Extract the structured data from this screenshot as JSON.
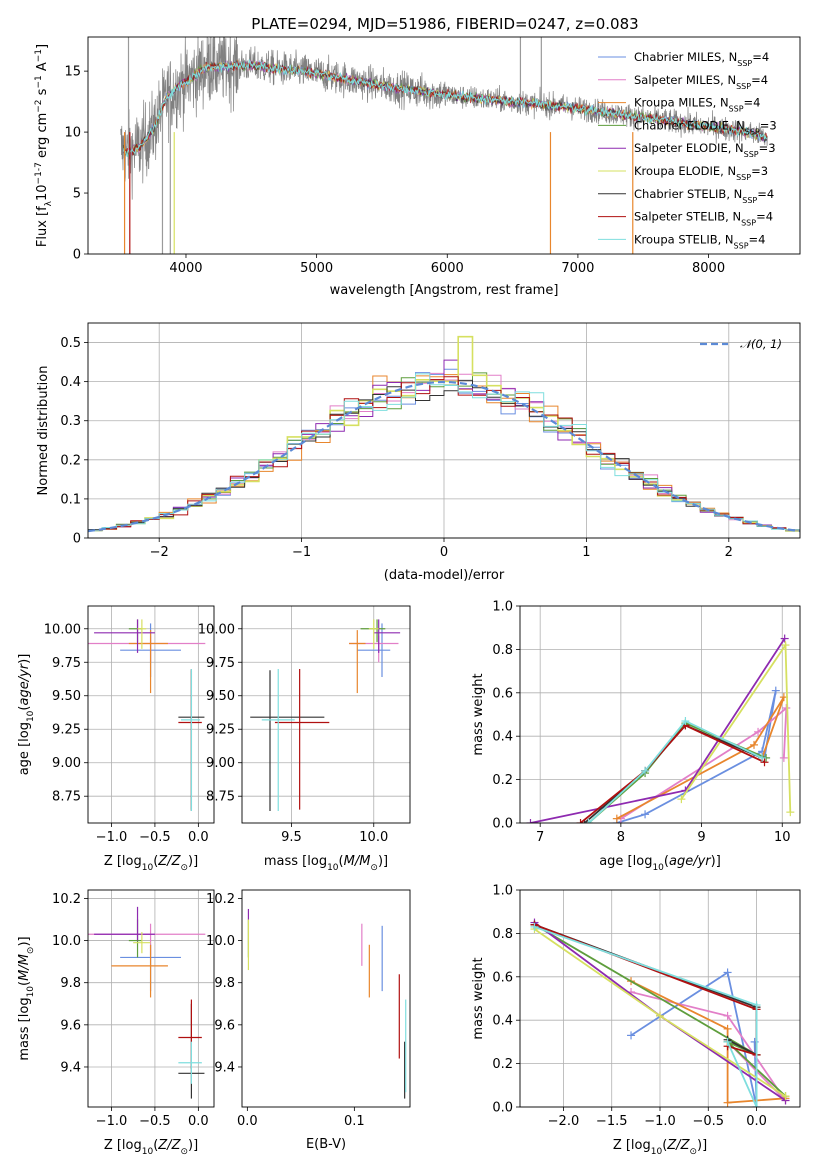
{
  "figure": {
    "title": "PLATE=0294, MJD=51986, FIBERID=0247, z=0.083"
  },
  "legend_labels": [
    {
      "name": "Chabrier MILES, N",
      "sub": "SSP",
      "tail": "=4",
      "color": "#6a8fe0"
    },
    {
      "name": "Salpeter MILES, N",
      "sub": "SSP",
      "tail": "=4",
      "color": "#e27fc8"
    },
    {
      "name": "Kroupa MILES, N",
      "sub": "SSP",
      "tail": "=4",
      "color": "#e8862d"
    },
    {
      "name": "Chabrier ELODIE, N",
      "sub": "SSP",
      "tail": "=3",
      "color": "#5e9d3c"
    },
    {
      "name": "Salpeter ELODIE, N",
      "sub": "SSP",
      "tail": "=3",
      "color": "#8e2ab0"
    },
    {
      "name": "Kroupa ELODIE, N",
      "sub": "SSP",
      "tail": "=3",
      "color": "#d6e060"
    },
    {
      "name": "Chabrier STELIB, N",
      "sub": "SSP",
      "tail": "=4",
      "color": "#333333"
    },
    {
      "name": "Salpeter STELIB, N",
      "sub": "SSP",
      "tail": "=4",
      "color": "#b01010"
    },
    {
      "name": "Kroupa STELIB, N",
      "sub": "SSP",
      "tail": "=4",
      "color": "#7fdede"
    }
  ],
  "chart_data": [
    {
      "id": "spectrum",
      "type": "line",
      "title": "PLATE=0294, MJD=51986, FIBERID=0247, z=0.083",
      "xlabel": "wavelength [Angstrom, rest frame]",
      "ylabel": "Flux [fλ10⁻¹⁷ erg cm⁻² s⁻¹ A⁻¹]",
      "xlim": [
        3250,
        8700
      ],
      "ylim": [
        0,
        17.8
      ],
      "xticks": [
        4000,
        5000,
        6000,
        7000,
        8000
      ],
      "yticks": [
        0,
        5,
        10,
        15
      ],
      "data_color": "#808080",
      "data_anchors": {
        "wavelength": [
          3500,
          3550,
          3650,
          3750,
          3850,
          3950,
          4050,
          4150,
          4300,
          4500,
          4700,
          4900,
          5100,
          5300,
          5500,
          5700,
          5900,
          6100,
          6300,
          6500,
          6700,
          6900,
          7100,
          7300,
          7500,
          7700,
          7900,
          8100,
          8300,
          8450
        ],
        "flux": [
          8.7,
          8.3,
          8.8,
          10.2,
          12.8,
          13.8,
          14.5,
          15.3,
          15.4,
          15.5,
          15.2,
          15.0,
          14.6,
          14.2,
          13.8,
          13.5,
          13.2,
          12.9,
          12.7,
          12.5,
          12.3,
          12.1,
          11.8,
          11.5,
          11.2,
          10.9,
          10.6,
          10.3,
          10.0,
          9.5
        ]
      },
      "legend_position": "upper right",
      "grid": false
    },
    {
      "id": "residuals",
      "type": "bar",
      "xlabel": "(data-model)/error",
      "ylabel": "Normed distribution",
      "xlim": [
        -2.5,
        2.5
      ],
      "ylim": [
        0,
        0.55
      ],
      "xticks": [
        -2,
        -1,
        0,
        1,
        2
      ],
      "yticks": [
        0.0,
        0.1,
        0.2,
        0.3,
        0.4,
        0.5
      ],
      "bin_width": 0.1,
      "curve_label": "N(0,1)",
      "curve_color": "#5b8ad6",
      "legend_position": "upper right",
      "grid": true
    },
    {
      "id": "age_vs_Z",
      "type": "scatter",
      "xlabel": "Z [log10(Z/Z⊙)]",
      "ylabel": "age  [log10(age/yr)]",
      "xlim": [
        -1.27,
        0.18
      ],
      "ylim": [
        8.55,
        10.17
      ],
      "xticks": [
        -1.0,
        -0.5,
        0.0
      ],
      "yticks": [
        8.75,
        9.0,
        9.25,
        9.5,
        9.75,
        10.0
      ],
      "points": [
        {
          "x": -0.55,
          "y": 9.84,
          "xerr": [
            0.35,
            0.35
          ],
          "yerr": [
            0.2,
            0.2
          ],
          "color": "#6a8fe0"
        },
        {
          "x": -0.55,
          "y": 9.89,
          "xerr": [
            0.73,
            0.63
          ],
          "yerr": [
            0.14,
            0.06
          ],
          "color": "#e27fc8"
        },
        {
          "x": -0.55,
          "y": 9.89,
          "xerr": [
            0.25,
            0.2
          ],
          "yerr": [
            0.37,
            0.1
          ],
          "color": "#e8862d"
        },
        {
          "x": -0.7,
          "y": 10.0,
          "xerr": [
            0.1,
            0.05
          ],
          "yerr": [
            0.1,
            0.07
          ],
          "color": "#5e9d3c"
        },
        {
          "x": -0.7,
          "y": 9.97,
          "xerr": [
            0.5,
            0.2
          ],
          "yerr": [
            0.15,
            0.1
          ],
          "color": "#8e2ab0"
        },
        {
          "x": -0.65,
          "y": 10.0,
          "xerr": [
            0.05,
            0.05
          ],
          "yerr": [
            0.15,
            0.07
          ],
          "color": "#d6e060"
        },
        {
          "x": -0.08,
          "y": 9.34,
          "xerr": [
            0.15,
            0.15
          ],
          "yerr": [
            0.7,
            0.35
          ],
          "color": "#333333"
        },
        {
          "x": -0.08,
          "y": 9.3,
          "xerr": [
            0.15,
            0.12
          ],
          "yerr": [
            0.65,
            0.4
          ],
          "color": "#b01010"
        },
        {
          "x": -0.08,
          "y": 9.32,
          "xerr": [
            0.12,
            0.1
          ],
          "yerr": [
            0.68,
            0.38
          ],
          "color": "#7fdede"
        }
      ],
      "grid": true
    },
    {
      "id": "age_vs_mass",
      "type": "scatter",
      "xlabel": "mass [log10(M/M⊙)]",
      "ylabel": "",
      "xlim": [
        9.2,
        10.22
      ],
      "ylim": [
        8.55,
        10.17
      ],
      "xticks": [
        9.5,
        10.0
      ],
      "yticks": [
        8.75,
        9.0,
        9.25,
        9.5,
        9.75,
        10.0
      ],
      "points": [
        {
          "x": 10.05,
          "y": 9.84,
          "xerr": [
            0.15,
            0.05
          ],
          "yerr": [
            0.2,
            0.2
          ],
          "color": "#6a8fe0"
        },
        {
          "x": 10.03,
          "y": 9.89,
          "xerr": [
            0.18,
            0.12
          ],
          "yerr": [
            0.14,
            0.06
          ],
          "color": "#e27fc8"
        },
        {
          "x": 9.9,
          "y": 9.89,
          "xerr": [
            0.05,
            0.05
          ],
          "yerr": [
            0.37,
            0.1
          ],
          "color": "#e8862d"
        },
        {
          "x": 10.02,
          "y": 10.0,
          "xerr": [
            0.1,
            0.05
          ],
          "yerr": [
            0.1,
            0.07
          ],
          "color": "#5e9d3c"
        },
        {
          "x": 10.03,
          "y": 9.97,
          "xerr": [
            0.03,
            0.13
          ],
          "yerr": [
            0.15,
            0.1
          ],
          "color": "#8e2ab0"
        },
        {
          "x": 10.0,
          "y": 10.0,
          "xerr": [
            0.03,
            0.03
          ],
          "yerr": [
            0.15,
            0.07
          ],
          "color": "#d6e060"
        },
        {
          "x": 9.37,
          "y": 9.34,
          "xerr": [
            0.12,
            0.33
          ],
          "yerr": [
            0.7,
            0.35
          ],
          "color": "#333333"
        },
        {
          "x": 9.55,
          "y": 9.3,
          "xerr": [
            0.15,
            0.18
          ],
          "yerr": [
            0.65,
            0.4
          ],
          "color": "#b01010"
        },
        {
          "x": 9.42,
          "y": 9.32,
          "xerr": [
            0.1,
            0.1
          ],
          "yerr": [
            0.68,
            0.38
          ],
          "color": "#7fdede"
        }
      ],
      "grid": true
    },
    {
      "id": "weight_vs_age",
      "type": "line",
      "xlabel": "age  [log10(age/yr)]",
      "ylabel": "mass weight",
      "xlim": [
        6.75,
        10.22
      ],
      "ylim": [
        0,
        1.0
      ],
      "xticks": [
        7,
        8,
        9,
        10
      ],
      "yticks": [
        0.0,
        0.2,
        0.4,
        0.6,
        0.8,
        1.0
      ],
      "series": [
        {
          "color": "#6a8fe0",
          "x": [
            7.95,
            8.3,
            9.75,
            9.92,
            9.78
          ],
          "y": [
            0.0,
            0.04,
            0.33,
            0.61,
            0.3
          ]
        },
        {
          "color": "#e27fc8",
          "x": [
            8.0,
            9.7,
            10.05,
            10.02
          ],
          "y": [
            0.02,
            0.42,
            0.53,
            0.3
          ]
        },
        {
          "color": "#e8862d",
          "x": [
            7.95,
            9.65,
            10.02,
            9.75
          ],
          "y": [
            0.02,
            0.36,
            0.58,
            0.3
          ]
        },
        {
          "color": "#5e9d3c",
          "x": [
            7.6,
            8.3,
            8.8,
            9.8
          ],
          "y": [
            0.0,
            0.23,
            0.46,
            0.3
          ]
        },
        {
          "color": "#8e2ab0",
          "x": [
            6.88,
            8.8,
            10.03
          ],
          "y": [
            0.0,
            0.15,
            0.85
          ]
        },
        {
          "color": "#d6e060",
          "x": [
            8.75,
            10.04,
            10.1
          ],
          "y": [
            0.11,
            0.82,
            0.05
          ]
        },
        {
          "color": "#333333",
          "x": [
            7.55,
            8.3,
            8.8,
            9.75
          ],
          "y": [
            0.0,
            0.24,
            0.45,
            0.3
          ]
        },
        {
          "color": "#b01010",
          "x": [
            7.5,
            8.3,
            8.8,
            9.78
          ],
          "y": [
            0.0,
            0.24,
            0.45,
            0.28
          ]
        },
        {
          "color": "#7fdede",
          "x": [
            7.6,
            8.3,
            8.8,
            9.75
          ],
          "y": [
            0.0,
            0.24,
            0.47,
            0.3
          ]
        }
      ],
      "grid": true
    },
    {
      "id": "mass_vs_Z",
      "type": "scatter",
      "xlabel": "Z [log10(Z/Z⊙)]",
      "ylabel": "mass [log10(M/M⊙)]",
      "xlim": [
        -1.27,
        0.18
      ],
      "ylim": [
        9.21,
        10.24
      ],
      "xticks": [
        -1.0,
        -0.5,
        0.0
      ],
      "yticks": [
        9.4,
        9.6,
        9.8,
        10.0,
        10.2
      ],
      "points": [
        {
          "x": -0.55,
          "y": 9.92,
          "xerr": [
            0.35,
            0.35
          ],
          "yerr": [
            0.16,
            0.06
          ],
          "color": "#6a8fe0"
        },
        {
          "x": -0.55,
          "y": 10.03,
          "xerr": [
            0.73,
            0.63
          ],
          "yerr": [
            0.1,
            0.05
          ],
          "color": "#e27fc8"
        },
        {
          "x": -0.55,
          "y": 9.88,
          "xerr": [
            0.45,
            0.2
          ],
          "yerr": [
            0.15,
            0.1
          ],
          "color": "#e8862d"
        },
        {
          "x": -0.7,
          "y": 10.0,
          "xerr": [
            0.1,
            0.05
          ],
          "yerr": [
            0.08,
            0.1
          ],
          "color": "#5e9d3c"
        },
        {
          "x": -0.7,
          "y": 10.03,
          "xerr": [
            0.5,
            0.2
          ],
          "yerr": [
            0.03,
            0.13
          ],
          "color": "#8e2ab0"
        },
        {
          "x": -0.65,
          "y": 9.99,
          "xerr": [
            0.1,
            0.1
          ],
          "yerr": [
            0.05,
            0.05
          ],
          "color": "#d6e060"
        },
        {
          "x": -0.08,
          "y": 9.37,
          "xerr": [
            0.15,
            0.15
          ],
          "yerr": [
            0.12,
            0.33
          ],
          "color": "#333333"
        },
        {
          "x": -0.08,
          "y": 9.54,
          "xerr": [
            0.15,
            0.12
          ],
          "yerr": [
            0.15,
            0.18
          ],
          "color": "#b01010"
        },
        {
          "x": -0.08,
          "y": 9.42,
          "xerr": [
            0.15,
            0.12
          ],
          "yerr": [
            0.1,
            0.1
          ],
          "color": "#7fdede"
        }
      ],
      "grid": true
    },
    {
      "id": "mass_vs_ebv",
      "type": "scatter",
      "xlabel": "E(B-V)",
      "ylabel": "",
      "xlim": [
        -0.005,
        0.152
      ],
      "ylim": [
        9.21,
        10.24
      ],
      "xticks": [
        0.0,
        0.1
      ],
      "yticks": [
        9.4,
        9.6,
        9.8,
        10.0,
        10.2
      ],
      "points": [
        {
          "x": 0.126,
          "y": 9.92,
          "xerr": [
            0,
            0
          ],
          "yerr": [
            0.16,
            0.15
          ],
          "color": "#6a8fe0"
        },
        {
          "x": 0.107,
          "y": 10.03,
          "xerr": [
            0,
            0
          ],
          "yerr": [
            0.15,
            0.05
          ],
          "color": "#e27fc8"
        },
        {
          "x": 0.114,
          "y": 9.88,
          "xerr": [
            0,
            0
          ],
          "yerr": [
            0.15,
            0.1
          ],
          "color": "#e8862d"
        },
        {
          "x": 0.001,
          "y": 10.0,
          "xerr": [
            0,
            0
          ],
          "yerr": [
            0.08,
            0.1
          ],
          "color": "#5e9d3c"
        },
        {
          "x": 0.001,
          "y": 10.12,
          "xerr": [
            0,
            0
          ],
          "yerr": [
            0.02,
            0.03
          ],
          "color": "#8e2ab0"
        },
        {
          "x": 0.001,
          "y": 9.98,
          "xerr": [
            0,
            0
          ],
          "yerr": [
            0.12,
            0.12
          ],
          "color": "#d6e060"
        },
        {
          "x": 0.147,
          "y": 9.37,
          "xerr": [
            0,
            0
          ],
          "yerr": [
            0.12,
            0.15
          ],
          "color": "#333333"
        },
        {
          "x": 0.142,
          "y": 9.64,
          "xerr": [
            0,
            0
          ],
          "yerr": [
            0.2,
            0.2
          ],
          "color": "#b01010"
        },
        {
          "x": 0.148,
          "y": 9.5,
          "xerr": [
            0,
            0
          ],
          "yerr": [
            0.22,
            0.22
          ],
          "color": "#7fdede"
        }
      ],
      "grid": false
    },
    {
      "id": "weight_vs_Z",
      "type": "line",
      "xlabel": "Z [log10(Z/Z⊙)]",
      "ylabel": "mass weight",
      "xlim": [
        -2.45,
        0.45
      ],
      "ylim": [
        0,
        1.0
      ],
      "xticks": [
        -2.0,
        -1.5,
        -1.0,
        -0.5,
        0.0
      ],
      "yticks": [
        0.0,
        0.2,
        0.4,
        0.6,
        0.8,
        1.0
      ],
      "series": [
        {
          "color": "#6a8fe0",
          "x": [
            -1.3,
            -0.3,
            0.0,
            -0.02
          ],
          "y": [
            0.33,
            0.62,
            0.0,
            0.3
          ]
        },
        {
          "color": "#e27fc8",
          "x": [
            -1.3,
            -0.3,
            0.3,
            -0.3
          ],
          "y": [
            0.53,
            0.42,
            0.03,
            0.3
          ]
        },
        {
          "color": "#e8862d",
          "x": [
            -1.3,
            -0.3,
            -0.3,
            0.3
          ],
          "y": [
            0.58,
            0.36,
            0.02,
            0.04
          ]
        },
        {
          "color": "#5e9d3c",
          "x": [
            -2.3,
            0.0,
            -0.3,
            0.3
          ],
          "y": [
            0.84,
            0.24,
            0.3,
            0.05
          ]
        },
        {
          "color": "#8e2ab0",
          "x": [
            -2.3,
            -1.0,
            0.3
          ],
          "y": [
            0.85,
            0.42,
            0.03
          ]
        },
        {
          "color": "#d6e060",
          "x": [
            -2.3,
            -1.0,
            0.3
          ],
          "y": [
            0.82,
            0.42,
            0.05
          ]
        },
        {
          "color": "#333333",
          "x": [
            -2.3,
            0.0,
            0.0,
            -0.3
          ],
          "y": [
            0.84,
            0.46,
            0.24,
            0.31
          ]
        },
        {
          "color": "#b01010",
          "x": [
            -2.3,
            0.0,
            0.0,
            -0.3
          ],
          "y": [
            0.84,
            0.45,
            0.24,
            0.28
          ]
        },
        {
          "color": "#7fdede",
          "x": [
            -2.3,
            0.0,
            0.0,
            -0.3
          ],
          "y": [
            0.83,
            0.47,
            0.0,
            0.3
          ]
        }
      ],
      "grid": true
    }
  ]
}
